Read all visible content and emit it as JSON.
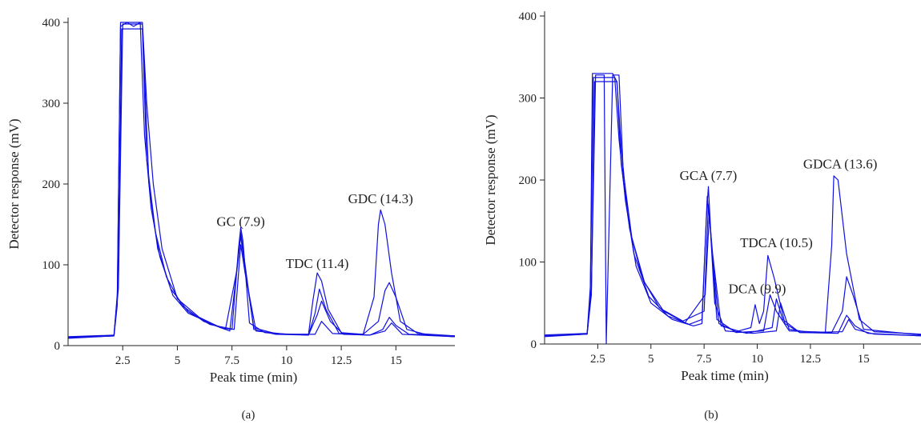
{
  "chart_data": [
    {
      "type": "line",
      "panel_label": "(a)",
      "xlabel": "Peak time (min)",
      "ylabel": "Detector response (mV)",
      "xlim": [
        0,
        17.7
      ],
      "ylim": [
        0,
        400
      ],
      "xticks": [
        2.5,
        5,
        7.5,
        10,
        12.5,
        15
      ],
      "yticks": [
        0,
        100,
        200,
        300,
        400
      ],
      "color": "#1010e0",
      "annotations": [
        {
          "text": "GC (7.9)",
          "x": 7.9,
          "y": 148
        },
        {
          "text": "TDC (11.4)",
          "x": 11.4,
          "y": 96
        },
        {
          "text": "GDC (14.3)",
          "x": 14.3,
          "y": 176
        }
      ],
      "series": [
        {
          "x": [
            0,
            2.1,
            2.25,
            2.4,
            2.6,
            2.8,
            3.0,
            3.2,
            3.4,
            3.6,
            3.9,
            4.3,
            5.0,
            6.0,
            7.0,
            7.5,
            7.8,
            7.9,
            8.0,
            8.3,
            9.0,
            10,
            11,
            11.2,
            11.4,
            11.6,
            11.9,
            12.5,
            13.5,
            14.0,
            14.2,
            14.3,
            14.5,
            14.8,
            15.2,
            16,
            17.7
          ],
          "values": [
            10,
            12,
            50,
            400,
            400,
            400,
            400,
            400,
            400,
            300,
            200,
            120,
            58,
            35,
            22,
            20,
            120,
            146,
            130,
            28,
            16,
            14,
            14,
            55,
            90,
            80,
            45,
            16,
            14,
            60,
            150,
            168,
            150,
            90,
            30,
            15,
            12
          ]
        },
        {
          "x": [
            0,
            2.1,
            2.25,
            2.4,
            2.7,
            3.0,
            3.3,
            3.5,
            3.8,
            4.2,
            4.8,
            5.5,
            6.5,
            7.4,
            7.8,
            7.9,
            8.1,
            8.5,
            9.5,
            11,
            11.3,
            11.5,
            11.8,
            12.4,
            13.5,
            14.2,
            14.5,
            14.7,
            15.0,
            15.5,
            16.5,
            17.7
          ],
          "values": [
            10,
            12,
            60,
            395,
            400,
            395,
            400,
            260,
            170,
            110,
            62,
            40,
            28,
            18,
            110,
            140,
            100,
            20,
            14,
            13,
            40,
            70,
            45,
            15,
            14,
            30,
            68,
            78,
            60,
            20,
            13,
            11
          ]
        },
        {
          "x": [
            0,
            2.1,
            2.3,
            2.45,
            2.8,
            3.1,
            3.4,
            3.6,
            4.0,
            4.5,
            5.2,
            6.2,
            7.2,
            7.7,
            7.9,
            8.1,
            8.5,
            9.5,
            11,
            11.4,
            11.6,
            12.0,
            12.6,
            13.8,
            14.4,
            14.7,
            15.0,
            15.6,
            17.7
          ],
          "values": [
            11,
            13,
            80,
            392,
            392,
            392,
            392,
            230,
            140,
            85,
            50,
            30,
            20,
            90,
            135,
            95,
            22,
            15,
            13,
            38,
            55,
            30,
            14,
            13,
            20,
            35,
            25,
            14,
            12
          ]
        },
        {
          "x": [
            0,
            2.1,
            2.3,
            2.5,
            2.9,
            3.2,
            3.4,
            3.7,
            4.1,
            4.7,
            5.5,
            6.5,
            7.6,
            7.9,
            8.1,
            8.6,
            10,
            11.3,
            11.6,
            12.1,
            13.8,
            14.5,
            14.8,
            15.3,
            17.7
          ],
          "values": [
            9,
            12,
            70,
            398,
            398,
            398,
            398,
            200,
            120,
            70,
            42,
            26,
            20,
            125,
            90,
            18,
            14,
            14,
            30,
            15,
            13,
            18,
            28,
            14,
            11
          ]
        }
      ]
    },
    {
      "type": "line",
      "panel_label": "(b)",
      "xlabel": "Peak time (min)",
      "ylabel": "Detector response (mV)",
      "xlim": [
        0,
        17.7
      ],
      "ylim": [
        0,
        400
      ],
      "xticks": [
        2.5,
        5,
        7.5,
        10,
        12.5,
        15
      ],
      "yticks": [
        0,
        100,
        200,
        300,
        400
      ],
      "color": "#1010e0",
      "annotations": [
        {
          "text": "GCA (7.7)",
          "x": 7.7,
          "y": 200
        },
        {
          "text": "TDCA (10.5)",
          "x": 10.9,
          "y": 118
        },
        {
          "text": "DCA (9.9)",
          "x": 10.0,
          "y": 62
        },
        {
          "text": "GDCA (13.6)",
          "x": 13.9,
          "y": 214
        }
      ],
      "series": [
        {
          "x": [
            0,
            2.0,
            2.15,
            2.25,
            2.6,
            2.9,
            3.2,
            3.4,
            3.6,
            3.9,
            4.3,
            5.0,
            6.0,
            7.0,
            7.4,
            7.6,
            7.7,
            7.85,
            8.2,
            9.0,
            9.7,
            9.9,
            10.1,
            10.3,
            10.5,
            10.8,
            11.3,
            12.0,
            13.2,
            13.5,
            13.6,
            13.8,
            14.2,
            14.8,
            15.5,
            17.7
          ],
          "values": [
            10,
            12,
            60,
            330,
            330,
            330,
            330,
            320,
            240,
            160,
            95,
            50,
            30,
            22,
            25,
            150,
            192,
            120,
            25,
            15,
            20,
            48,
            25,
            40,
            108,
            80,
            25,
            14,
            14,
            120,
            205,
            200,
            110,
            30,
            15,
            12
          ]
        },
        {
          "x": [
            0,
            2.0,
            2.15,
            2.3,
            2.7,
            3.0,
            3.3,
            3.5,
            3.8,
            4.2,
            4.9,
            5.8,
            6.8,
            7.4,
            7.65,
            7.8,
            8.1,
            9.0,
            10.3,
            10.6,
            10.9,
            11.5,
            13.5,
            14.0,
            14.2,
            14.5,
            15.0,
            17.7
          ],
          "values": [
            11,
            13,
            70,
            325,
            325,
            325,
            325,
            250,
            175,
            110,
            58,
            34,
            24,
            30,
            180,
            140,
            30,
            14,
            16,
            60,
            40,
            16,
            14,
            40,
            82,
            60,
            18,
            11
          ]
        },
        {
          "x": [
            0,
            2.0,
            2.2,
            2.35,
            2.8,
            3.1,
            3.4,
            3.6,
            4.0,
            4.6,
            5.4,
            6.5,
            7.5,
            7.7,
            7.9,
            8.3,
            9.5,
            10.7,
            10.9,
            11.2,
            12,
            13.8,
            14.2,
            14.6,
            15.2,
            17.7
          ],
          "values": [
            9,
            12,
            60,
            320,
            320,
            320,
            320,
            220,
            140,
            80,
            44,
            28,
            40,
            170,
            110,
            22,
            13,
            20,
            55,
            30,
            14,
            13,
            35,
            22,
            13,
            10
          ]
        },
        {
          "x": [
            0,
            2.0,
            2.2,
            2.4,
            2.8,
            2.9,
            3.2,
            3.5,
            3.7,
            4.1,
            4.7,
            5.6,
            6.6,
            7.55,
            7.75,
            8.0,
            8.5,
            9.8,
            10.9,
            11.1,
            11.5,
            12.5,
            14.0,
            14.3,
            14.6,
            15.5,
            17.7
          ],
          "values": [
            10,
            12,
            65,
            328,
            328,
            0,
            328,
            328,
            210,
            130,
            75,
            40,
            26,
            60,
            160,
            50,
            16,
            13,
            16,
            50,
            18,
            14,
            15,
            30,
            18,
            12,
            10
          ]
        }
      ]
    }
  ]
}
